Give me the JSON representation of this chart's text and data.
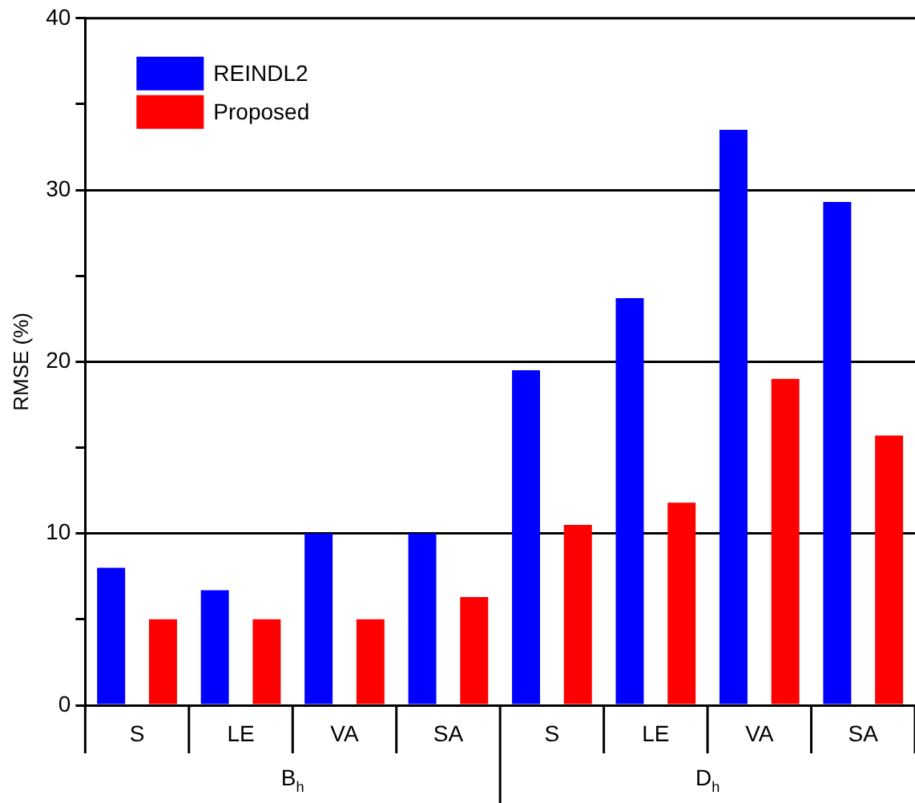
{
  "chart_data": {
    "type": "bar",
    "ylabel": "RMSE (%)",
    "categories": [
      "S",
      "LE",
      "VA",
      "SA",
      "S",
      "LE",
      "VA",
      "SA"
    ],
    "series": [
      {
        "name": "REINDL2",
        "color": "#0000ff",
        "values": [
          8.0,
          6.7,
          10,
          10,
          19.5,
          23.7,
          33.5,
          29.3
        ]
      },
      {
        "name": "Proposed",
        "color": "#ff0000",
        "values": [
          5.0,
          5.0,
          5.0,
          6.3,
          10.5,
          11.8,
          19.0,
          15.7
        ]
      }
    ],
    "ylim": [
      0,
      40
    ],
    "yticks": [
      0,
      {
        "value": 5,
        "label": null
      },
      10,
      {
        "value": 15,
        "label": null
      },
      20,
      {
        "value": 25,
        "label": null
      },
      30,
      {
        "value": 35,
        "label": null
      },
      40
    ],
    "grid": "y",
    "legend": "top left",
    "annotations": [
      "B$_{h}$",
      "D$_{h}$"
    ]
  }
}
